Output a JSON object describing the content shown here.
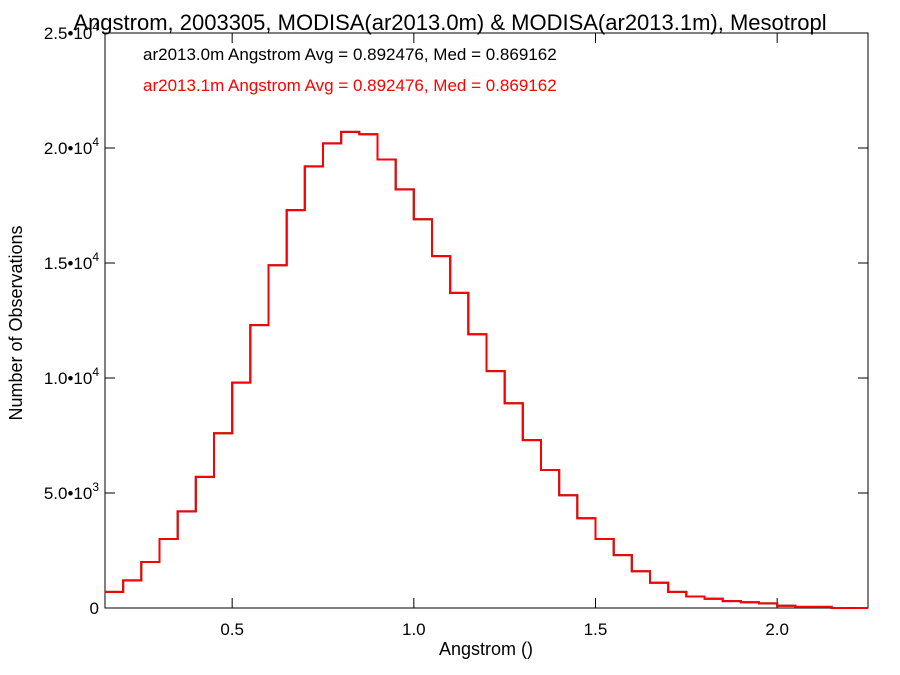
{
  "chart_data": {
    "type": "histogram",
    "title": "Angstrom, 2003305, MODISA(ar2013.0m) & MODISA(ar2013.1m), Mesotropl",
    "xlabel": "Angstrom ()",
    "ylabel": "Number of Observations",
    "xlim": [
      0.15,
      2.25
    ],
    "ylim": [
      0,
      25000
    ],
    "x_ticks": [
      {
        "value": 0.5,
        "label": "0.5"
      },
      {
        "value": 1.0,
        "label": "1.0"
      },
      {
        "value": 1.5,
        "label": "1.5"
      },
      {
        "value": 2.0,
        "label": "2.0"
      }
    ],
    "y_ticks": [
      {
        "value": 0,
        "label": "0",
        "mantissa": "0",
        "exponent": ""
      },
      {
        "value": 5000,
        "label": "5.0•10³",
        "mantissa": "5.0•10",
        "exponent": "3"
      },
      {
        "value": 10000,
        "label": "1.0•10⁴",
        "mantissa": "1.0•10",
        "exponent": "4"
      },
      {
        "value": 15000,
        "label": "1.5•10⁴",
        "mantissa": "1.5•10",
        "exponent": "4"
      },
      {
        "value": 20000,
        "label": "2.0•10⁴",
        "mantissa": "2.0•10",
        "exponent": "4"
      },
      {
        "value": 25000,
        "label": "2.5•10⁴",
        "mantissa": "2.5•10",
        "exponent": "4"
      }
    ],
    "grid": false,
    "legend_position": "top-left",
    "series": [
      {
        "name": "ar2013.0m",
        "color": "#000000",
        "legend_text": "ar2013.0m Angstrom Avg = 0.892476, Med = 0.869162",
        "avg": 0.892476,
        "median": 0.869162
      },
      {
        "name": "ar2013.1m",
        "color": "#ff0000",
        "legend_text": "ar2013.1m Angstrom Avg = 0.892476, Med = 0.869162",
        "avg": 0.892476,
        "median": 0.869162
      }
    ],
    "x": [
      0.15,
      0.2,
      0.25,
      0.3,
      0.35,
      0.4,
      0.45,
      0.5,
      0.55,
      0.6,
      0.65,
      0.7,
      0.75,
      0.8,
      0.85,
      0.9,
      0.95,
      1.0,
      1.05,
      1.1,
      1.15,
      1.2,
      1.25,
      1.3,
      1.35,
      1.4,
      1.45,
      1.5,
      1.55,
      1.6,
      1.65,
      1.7,
      1.75,
      1.8,
      1.85,
      1.9,
      1.95,
      2.0,
      2.05,
      2.1,
      2.15,
      2.2,
      2.25
    ],
    "counts": [
      700,
      1200,
      2000,
      3000,
      4200,
      5700,
      7600,
      9800,
      12300,
      14900,
      17300,
      19200,
      20200,
      20700,
      20600,
      19500,
      18200,
      16900,
      15300,
      13700,
      11900,
      10300,
      8900,
      7300,
      6000,
      4900,
      3900,
      3000,
      2300,
      1600,
      1100,
      700,
      500,
      400,
      300,
      250,
      200,
      100,
      50,
      50,
      0,
      0,
      0
    ]
  }
}
